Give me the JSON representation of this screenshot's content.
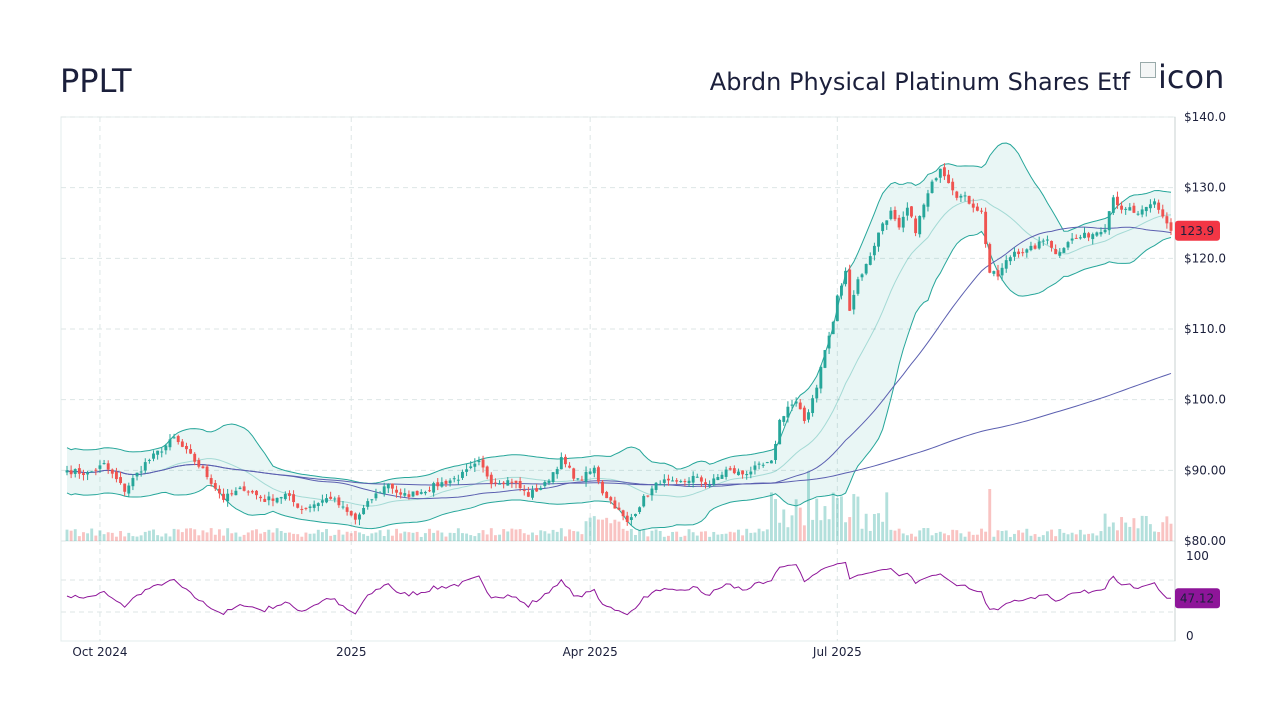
{
  "header": {
    "ticker": "PPLT",
    "name": "Abrdn Physical Platinum Shares Etf",
    "logo_alt": "icon"
  },
  "chart_data": {
    "type": "candlestick",
    "symbol": "PPLT",
    "price_axis": {
      "ylim": [
        80,
        140
      ],
      "ticks": [
        140,
        130,
        120,
        110,
        100,
        90,
        80
      ],
      "tick_labels": [
        "$140.0",
        "$130.0",
        "$120.0",
        "$110.0",
        "$100.0",
        "$90.00",
        "$80.00"
      ]
    },
    "last_price": {
      "value": 123.9,
      "label": "123.9",
      "color": "#f23645"
    },
    "rsi": {
      "value": 47.12,
      "label": "47.12",
      "ylim": [
        0,
        100
      ],
      "tick_labels": [
        "100",
        "0"
      ],
      "color": "#8e1599"
    },
    "x_axis": {
      "labels": [
        "Oct 2024",
        "2025",
        "Apr 2025",
        "Jul 2025"
      ],
      "label_index": [
        8,
        69,
        127,
        187
      ]
    },
    "grid": true,
    "colors": {
      "up": "#26a69a",
      "down": "#ef5350",
      "sma": "#5b5fb0",
      "band": "#26a69a"
    },
    "anchors": [
      [
        0,
        90.0
      ],
      [
        5,
        89.5
      ],
      [
        9,
        90.8
      ],
      [
        14,
        87.2
      ],
      [
        19,
        91.0
      ],
      [
        23,
        93.0
      ],
      [
        26,
        94.5
      ],
      [
        30,
        92.0
      ],
      [
        33,
        90.0
      ],
      [
        38,
        86.0
      ],
      [
        43,
        87.5
      ],
      [
        48,
        85.8
      ],
      [
        53,
        86.5
      ],
      [
        57,
        84.5
      ],
      [
        61,
        85.5
      ],
      [
        64,
        86.2
      ],
      [
        68,
        84.0
      ],
      [
        70,
        83.0
      ],
      [
        74,
        86.0
      ],
      [
        78,
        88.2
      ],
      [
        81,
        86.3
      ],
      [
        86,
        87.0
      ],
      [
        90,
        88.0
      ],
      [
        95,
        89.0
      ],
      [
        100,
        91.0
      ],
      [
        103,
        88.5
      ],
      [
        108,
        88.5
      ],
      [
        112,
        86.5
      ],
      [
        116,
        88.0
      ],
      [
        120,
        91.5
      ],
      [
        124,
        88.5
      ],
      [
        128,
        90.2
      ],
      [
        130,
        87.0
      ],
      [
        133,
        85.0
      ],
      [
        136,
        82.5
      ],
      [
        140,
        86.0
      ],
      [
        144,
        88.5
      ],
      [
        148,
        88.0
      ],
      [
        152,
        89.0
      ],
      [
        156,
        88.0
      ],
      [
        160,
        90.0
      ],
      [
        164,
        89.5
      ],
      [
        168,
        90.5
      ],
      [
        171,
        91.0
      ],
      [
        173,
        97.0
      ],
      [
        175,
        99.0
      ],
      [
        177,
        99.5
      ],
      [
        179,
        97.0
      ],
      [
        180,
        98.5
      ],
      [
        182,
        102.0
      ],
      [
        184,
        107.0
      ],
      [
        186,
        111.0
      ],
      [
        187,
        114.5
      ],
      [
        189,
        118.0
      ],
      [
        190,
        113.0
      ],
      [
        192,
        117.0
      ],
      [
        194,
        119.0
      ],
      [
        196,
        122.0
      ],
      [
        198,
        125.0
      ],
      [
        200,
        126.5
      ],
      [
        202,
        124.0
      ],
      [
        204,
        127.0
      ],
      [
        206,
        124.0
      ],
      [
        208,
        127.5
      ],
      [
        210,
        130.5
      ],
      [
        212,
        133.0
      ],
      [
        214,
        131.0
      ],
      [
        216,
        129.0
      ],
      [
        218,
        128.5
      ],
      [
        220,
        127.5
      ],
      [
        222,
        126.5
      ],
      [
        224,
        118.0
      ],
      [
        226,
        117.5
      ],
      [
        228,
        119.5
      ],
      [
        230,
        121.0
      ],
      [
        233,
        121.0
      ],
      [
        236,
        122.0
      ],
      [
        238,
        123.0
      ],
      [
        240,
        120.5
      ],
      [
        243,
        122.5
      ],
      [
        246,
        123.0
      ],
      [
        249,
        123.5
      ],
      [
        252,
        124.5
      ],
      [
        254,
        129.0
      ],
      [
        256,
        126.5
      ],
      [
        258,
        127.0
      ],
      [
        260,
        126.0
      ],
      [
        262,
        127.0
      ],
      [
        264,
        128.0
      ],
      [
        266,
        126.0
      ],
      [
        268,
        123.9
      ]
    ]
  }
}
